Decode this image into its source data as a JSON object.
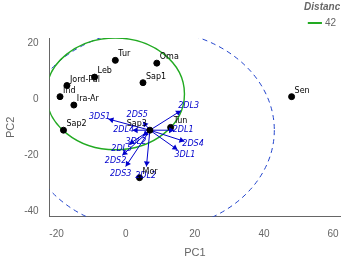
{
  "chart_data": {
    "type": "scatter",
    "xlabel": "PC1",
    "ylabel": "PC2",
    "xlim": [
      -22,
      62
    ],
    "ylim": [
      -42,
      22
    ],
    "xticks": [
      -20,
      0,
      20,
      40,
      60
    ],
    "yticks": [
      -40,
      -20,
      0,
      20
    ],
    "grid": false,
    "legend": "upper right",
    "legend_title": "Distance",
    "populations": {
      "color": "#000000",
      "marker": "circle",
      "points": [
        {
          "name": "Tur",
          "x": -3,
          "y": 14
        },
        {
          "name": "Leb",
          "x": -9,
          "y": 8
        },
        {
          "name": "Oma",
          "x": 9,
          "y": 13
        },
        {
          "name": "Sap1",
          "x": 5,
          "y": 6
        },
        {
          "name": "Jord-Pal",
          "x": -17,
          "y": 5
        },
        {
          "name": "Ind",
          "x": -19,
          "y": 1
        },
        {
          "name": "Ira-Ar",
          "x": -15,
          "y": -2
        },
        {
          "name": "Sap2",
          "x": -18,
          "y": -11
        },
        {
          "name": "Tun",
          "x": 13,
          "y": -10
        },
        {
          "name": "Mor",
          "x": 4,
          "y": -28
        },
        {
          "name": "Sen",
          "x": 48,
          "y": 1
        }
      ]
    },
    "origin": {
      "name": "Sap3",
      "x": 7,
      "y": -11
    },
    "vectors": {
      "color": "#0000cc",
      "points": [
        {
          "name": "3DS1",
          "x": -5,
          "y": -7
        },
        {
          "name": "2DS5",
          "x": 5,
          "y": -8
        },
        {
          "name": "2DL4",
          "x": 2,
          "y": -11
        },
        {
          "name": "3DL2",
          "x": 5,
          "y": -13
        },
        {
          "name": "2DL5",
          "x": 1,
          "y": -16
        },
        {
          "name": "2DS2",
          "x": -1,
          "y": -20
        },
        {
          "name": "2DS3",
          "x": 0,
          "y": -24
        },
        {
          "name": "2DL2",
          "x": 6,
          "y": -24
        },
        {
          "name": "2DL3",
          "x": 16,
          "y": -4
        },
        {
          "name": "2DL1",
          "x": 14,
          "y": -11
        },
        {
          "name": "2DS4",
          "x": 17,
          "y": -15
        },
        {
          "name": "3DL1",
          "x": 15,
          "y": -18
        }
      ]
    },
    "circles": [
      {
        "x": 7,
        "y": -11,
        "r": 36,
        "color": "#2244cc",
        "line_style": "dashed"
      },
      {
        "name": "42",
        "x": -3,
        "y": 2,
        "r": 20,
        "color": "#22aa22",
        "line_style": "solid"
      }
    ]
  }
}
